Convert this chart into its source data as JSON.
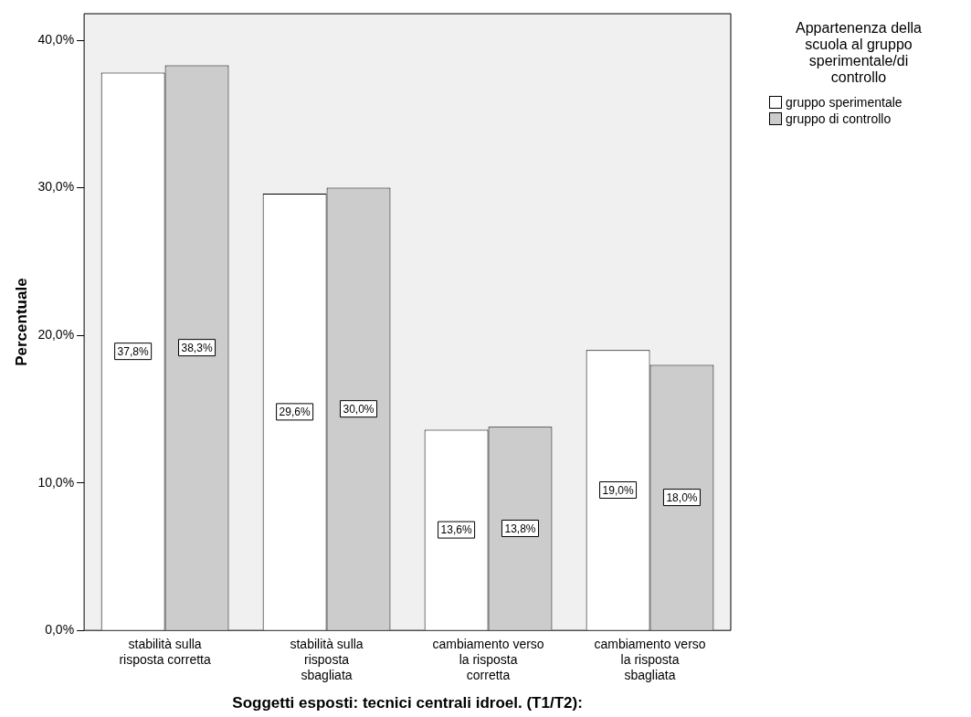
{
  "chart_data": {
    "type": "bar",
    "xlabel": "Soggetti esposti: tecnici centrali idroel. (T1/T2):",
    "ylabel": "Percentuale",
    "legend_title": "Appartenenza della scuola al gruppo sperimentale/di controllo",
    "categories": [
      "stabilità sulla risposta corretta",
      "stabilità sulla risposta sbagliata",
      "cambiamento verso la risposta corretta",
      "cambiamento verso la risposta sbagliata"
    ],
    "series": [
      {
        "name": "gruppo sperimentale",
        "color": "#ffffff",
        "values": [
          37.8,
          29.6,
          13.6,
          19.0
        ],
        "value_labels": [
          "37,8%",
          "29,6%",
          "13,6%",
          "19,0%"
        ]
      },
      {
        "name": "gruppo di controllo",
        "color": "#cccccc",
        "values": [
          38.3,
          30.0,
          13.8,
          18.0
        ],
        "value_labels": [
          "38,3%",
          "30,0%",
          "13,8%",
          "18,0%"
        ]
      }
    ],
    "ylim": [
      0,
      41.8
    ],
    "yticks": [
      {
        "value": 0,
        "label": "0,0%"
      },
      {
        "value": 10,
        "label": "10,0%"
      },
      {
        "value": 20,
        "label": "20,0%"
      },
      {
        "value": 30,
        "label": "30,0%"
      },
      {
        "value": 40,
        "label": "40,0%"
      }
    ],
    "grid": false,
    "legend": "top right"
  }
}
